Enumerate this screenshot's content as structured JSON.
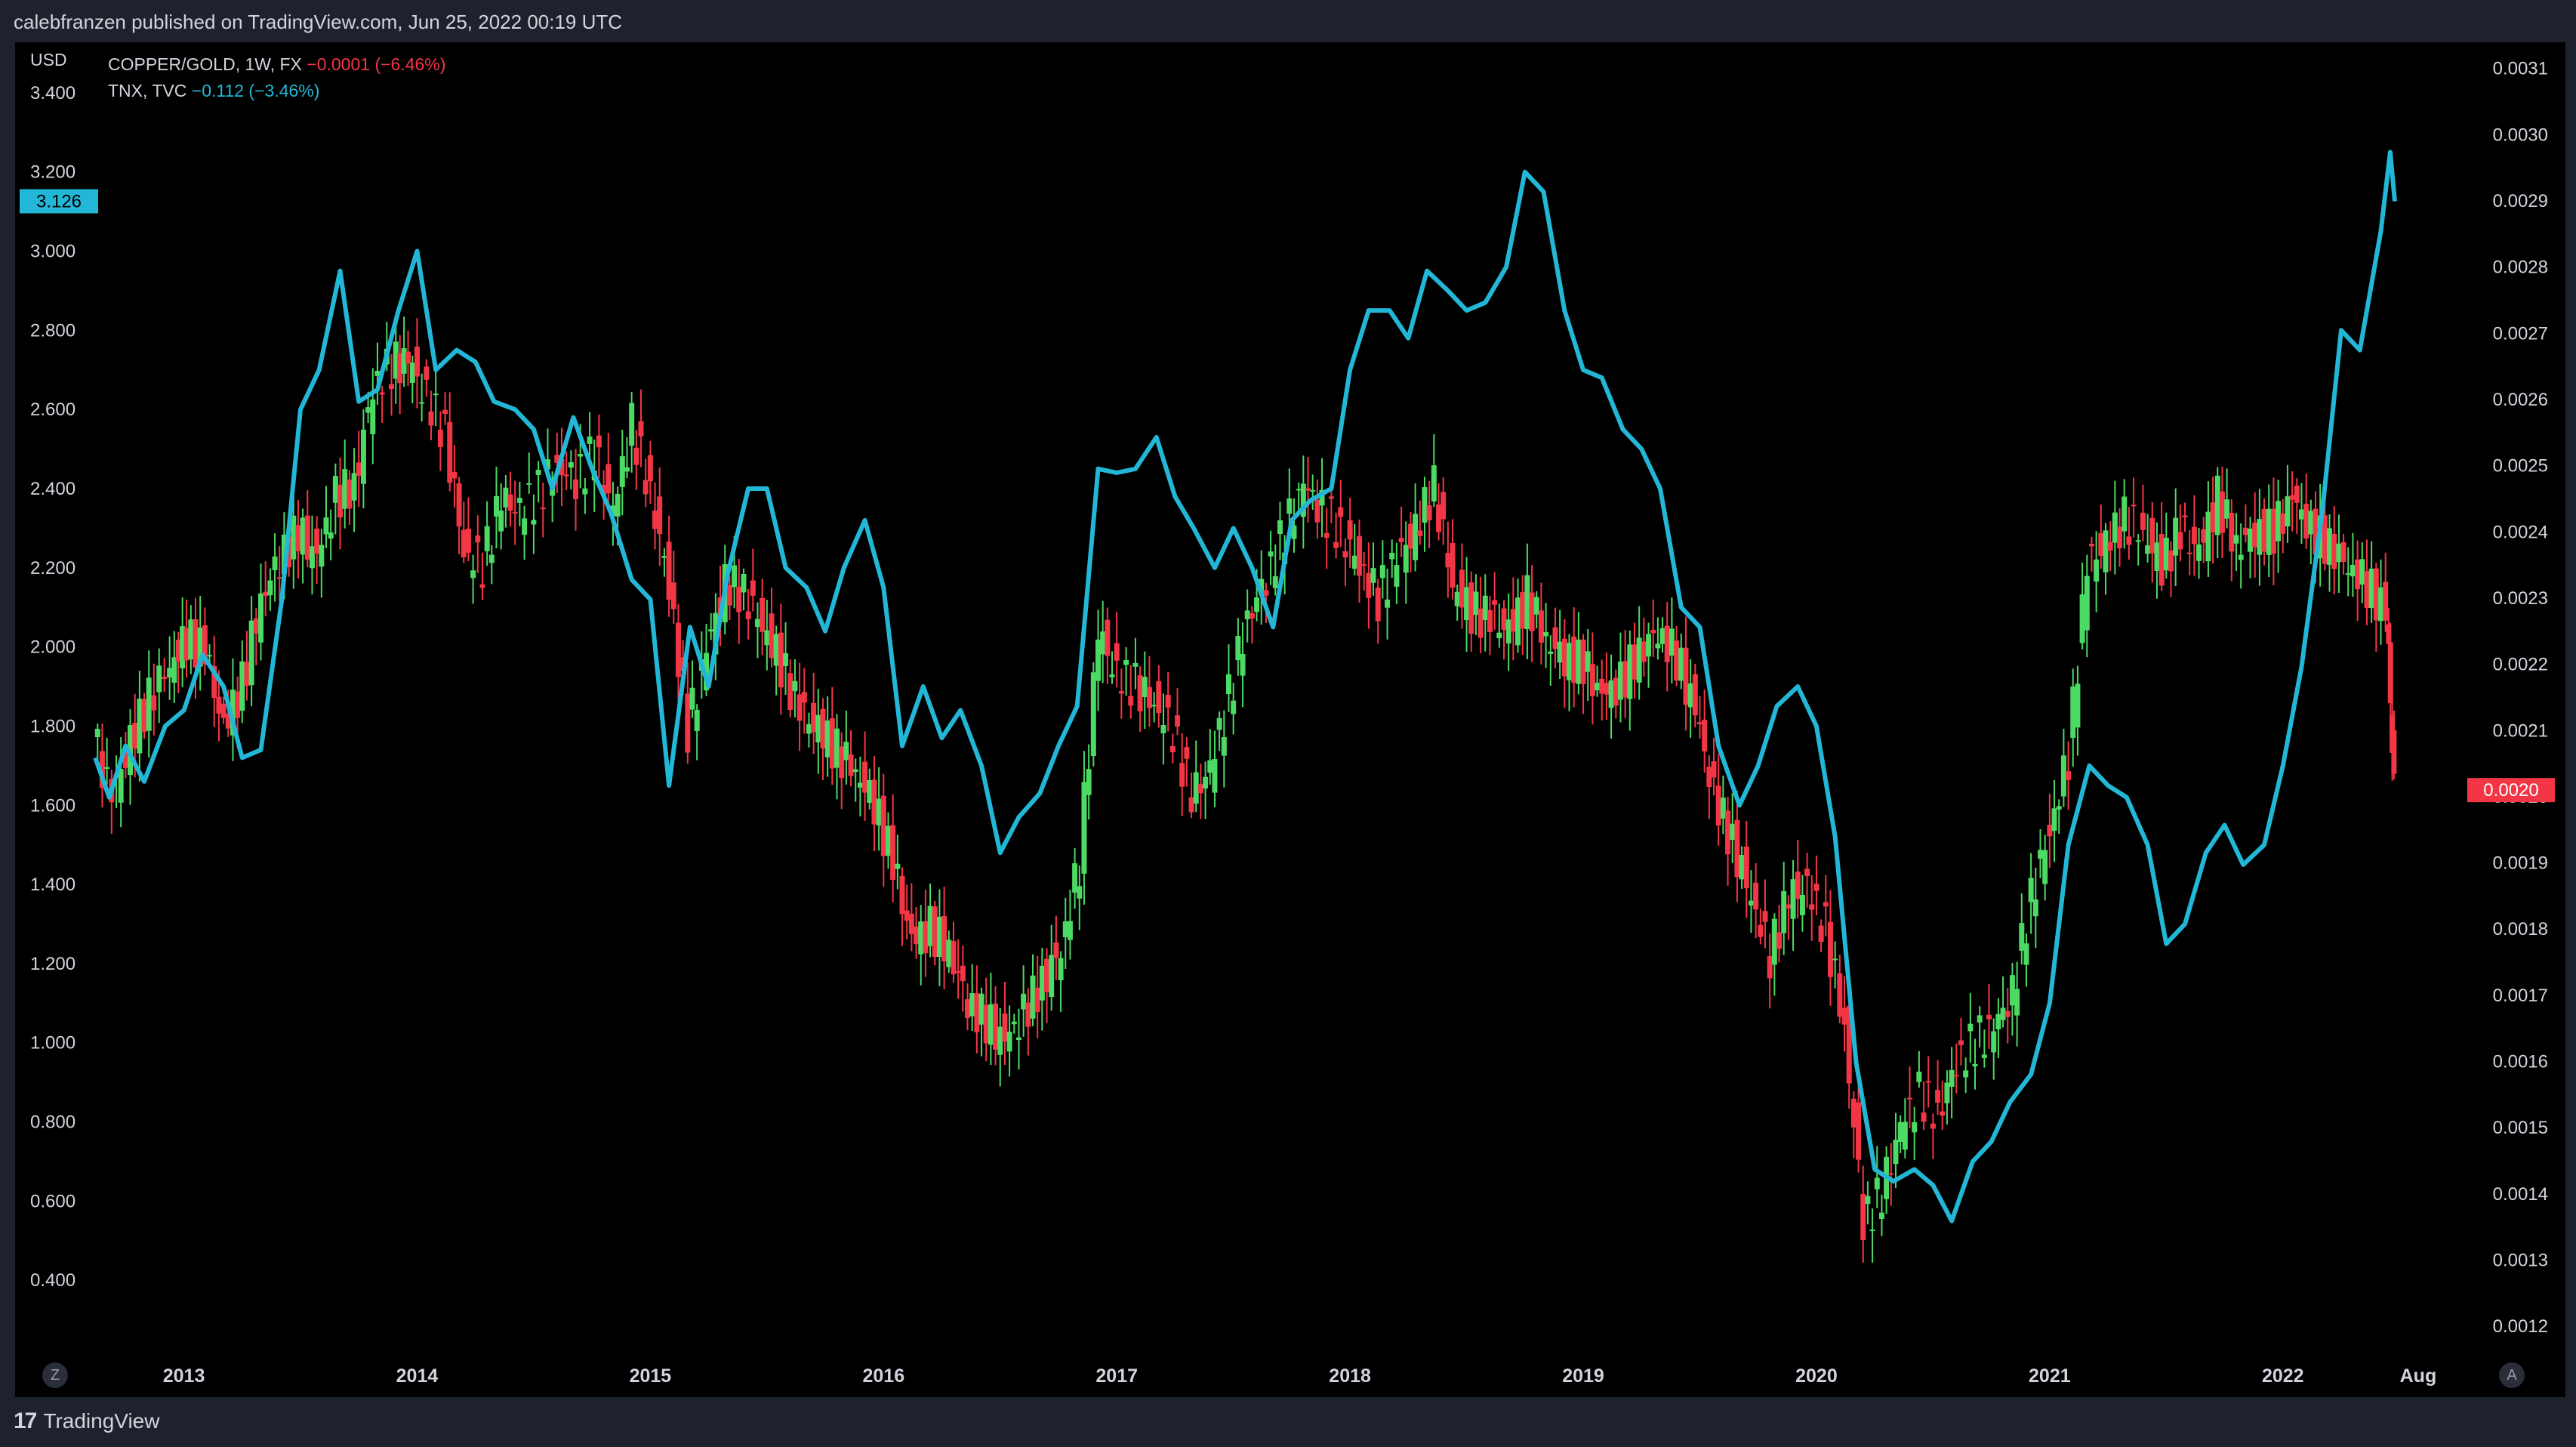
{
  "header": {
    "publish_text": "calebfranzen published on TradingView.com, Jun 25, 2022 00:19 UTC"
  },
  "footer": {
    "brand_mark": "17",
    "brand_text": "TradingView"
  },
  "controls": {
    "left_button": "Z",
    "right_button": "A"
  },
  "colors": {
    "background": "#000000",
    "frame": "#1e222d",
    "tnx_line": "#22b7d6",
    "candle_up": "#4cd964",
    "candle_down": "#f23645",
    "text": "#d1d4dc"
  },
  "legend": {
    "copper_gold": {
      "name": "COPPER/GOLD, 1W, FX",
      "change": "−0.0001 (−6.46%)"
    },
    "tnx": {
      "name": "TNX, TVC",
      "change": "−0.112 (−3.46%)"
    }
  },
  "chart_data": {
    "type": "line",
    "title": "",
    "left_axis": {
      "unit": "USD",
      "ticks": [
        "3.400",
        "3.200",
        "3.000",
        "2.800",
        "2.600",
        "2.400",
        "2.200",
        "2.000",
        "1.800",
        "1.600",
        "1.400",
        "1.200",
        "1.000",
        "0.800",
        "0.600",
        "0.400"
      ],
      "range": [
        0.2,
        3.52
      ],
      "last_value_label": "3.126",
      "last_value": 3.126
    },
    "right_axis": {
      "ticks": [
        "0.0031",
        "0.0030",
        "0.0029",
        "0.0028",
        "0.0027",
        "0.0026",
        "0.0025",
        "0.0024",
        "0.0023",
        "0.0022",
        "0.0021",
        "0.0020",
        "0.0019",
        "0.0018",
        "0.0017",
        "0.0016",
        "0.0015",
        "0.0014",
        "0.0013",
        "0.0012"
      ],
      "range": [
        0.00115,
        0.003135
      ],
      "last_value_label": "0.0020",
      "last_value": 0.00201
    },
    "x_axis": {
      "labels": [
        "2013",
        "2014",
        "2015",
        "2016",
        "2017",
        "2018",
        "2019",
        "2020",
        "2021",
        "2022",
        "Aug"
      ],
      "label_times": [
        2013.0,
        2014.0,
        2015.0,
        2016.0,
        2017.0,
        2018.0,
        2019.0,
        2020.0,
        2021.0,
        2022.0,
        2022.58
      ],
      "range": [
        2012.6,
        2022.7
      ]
    },
    "grid": false,
    "series": [
      {
        "name": "TNX, TVC",
        "style": "line",
        "axis": "left",
        "points": [
          [
            2012.62,
            1.72
          ],
          [
            2012.68,
            1.62
          ],
          [
            2012.75,
            1.75
          ],
          [
            2012.83,
            1.66
          ],
          [
            2012.92,
            1.8
          ],
          [
            2013.0,
            1.84
          ],
          [
            2013.08,
            1.98
          ],
          [
            2013.17,
            1.9
          ],
          [
            2013.25,
            1.72
          ],
          [
            2013.33,
            1.74
          ],
          [
            2013.42,
            2.12
          ],
          [
            2013.5,
            2.6
          ],
          [
            2013.58,
            2.7
          ],
          [
            2013.67,
            2.95
          ],
          [
            2013.75,
            2.62
          ],
          [
            2013.83,
            2.65
          ],
          [
            2013.92,
            2.85
          ],
          [
            2014.0,
            3.0
          ],
          [
            2014.08,
            2.7
          ],
          [
            2014.17,
            2.75
          ],
          [
            2014.25,
            2.72
          ],
          [
            2014.33,
            2.62
          ],
          [
            2014.42,
            2.6
          ],
          [
            2014.5,
            2.55
          ],
          [
            2014.58,
            2.4
          ],
          [
            2014.67,
            2.58
          ],
          [
            2014.75,
            2.45
          ],
          [
            2014.83,
            2.34
          ],
          [
            2014.92,
            2.17
          ],
          [
            2015.0,
            2.12
          ],
          [
            2015.08,
            1.65
          ],
          [
            2015.17,
            2.05
          ],
          [
            2015.25,
            1.9
          ],
          [
            2015.33,
            2.18
          ],
          [
            2015.42,
            2.4
          ],
          [
            2015.5,
            2.4
          ],
          [
            2015.58,
            2.2
          ],
          [
            2015.67,
            2.15
          ],
          [
            2015.75,
            2.04
          ],
          [
            2015.83,
            2.2
          ],
          [
            2015.92,
            2.32
          ],
          [
            2016.0,
            2.15
          ],
          [
            2016.08,
            1.75
          ],
          [
            2016.17,
            1.9
          ],
          [
            2016.25,
            1.77
          ],
          [
            2016.33,
            1.84
          ],
          [
            2016.42,
            1.7
          ],
          [
            2016.5,
            1.48
          ],
          [
            2016.58,
            1.57
          ],
          [
            2016.67,
            1.63
          ],
          [
            2016.75,
            1.75
          ],
          [
            2016.83,
            1.85
          ],
          [
            2016.92,
            2.45
          ],
          [
            2017.0,
            2.44
          ],
          [
            2017.08,
            2.45
          ],
          [
            2017.17,
            2.53
          ],
          [
            2017.25,
            2.38
          ],
          [
            2017.33,
            2.3
          ],
          [
            2017.42,
            2.2
          ],
          [
            2017.5,
            2.3
          ],
          [
            2017.58,
            2.2
          ],
          [
            2017.67,
            2.05
          ],
          [
            2017.75,
            2.32
          ],
          [
            2017.83,
            2.37
          ],
          [
            2017.92,
            2.4
          ],
          [
            2018.0,
            2.7
          ],
          [
            2018.08,
            2.85
          ],
          [
            2018.17,
            2.85
          ],
          [
            2018.25,
            2.78
          ],
          [
            2018.33,
            2.95
          ],
          [
            2018.42,
            2.9
          ],
          [
            2018.5,
            2.85
          ],
          [
            2018.58,
            2.87
          ],
          [
            2018.67,
            2.96
          ],
          [
            2018.75,
            3.2
          ],
          [
            2018.83,
            3.15
          ],
          [
            2018.92,
            2.85
          ],
          [
            2019.0,
            2.7
          ],
          [
            2019.08,
            2.68
          ],
          [
            2019.17,
            2.55
          ],
          [
            2019.25,
            2.5
          ],
          [
            2019.33,
            2.4
          ],
          [
            2019.42,
            2.1
          ],
          [
            2019.5,
            2.05
          ],
          [
            2019.58,
            1.75
          ],
          [
            2019.67,
            1.6
          ],
          [
            2019.75,
            1.7
          ],
          [
            2019.83,
            1.85
          ],
          [
            2019.92,
            1.9
          ],
          [
            2020.0,
            1.8
          ],
          [
            2020.08,
            1.52
          ],
          [
            2020.17,
            0.95
          ],
          [
            2020.25,
            0.68
          ],
          [
            2020.33,
            0.65
          ],
          [
            2020.42,
            0.68
          ],
          [
            2020.5,
            0.64
          ],
          [
            2020.58,
            0.55
          ],
          [
            2020.67,
            0.7
          ],
          [
            2020.75,
            0.75
          ],
          [
            2020.83,
            0.85
          ],
          [
            2020.92,
            0.92
          ],
          [
            2021.0,
            1.1
          ],
          [
            2021.08,
            1.5
          ],
          [
            2021.17,
            1.7
          ],
          [
            2021.25,
            1.65
          ],
          [
            2021.33,
            1.62
          ],
          [
            2021.42,
            1.5
          ],
          [
            2021.5,
            1.25
          ],
          [
            2021.58,
            1.3
          ],
          [
            2021.67,
            1.48
          ],
          [
            2021.75,
            1.55
          ],
          [
            2021.83,
            1.45
          ],
          [
            2021.92,
            1.5
          ],
          [
            2022.0,
            1.7
          ],
          [
            2022.08,
            1.95
          ],
          [
            2022.17,
            2.35
          ],
          [
            2022.25,
            2.8
          ],
          [
            2022.33,
            2.75
          ],
          [
            2022.42,
            3.05
          ],
          [
            2022.46,
            3.25
          ],
          [
            2022.48,
            3.126
          ]
        ]
      },
      {
        "name": "COPPER/GOLD, 1W, FX",
        "style": "candles",
        "axis": "right",
        "points": [
          [
            2012.62,
            0.00209
          ],
          [
            2012.7,
            0.002
          ],
          [
            2012.78,
            0.00208
          ],
          [
            2012.86,
            0.00215
          ],
          [
            2012.95,
            0.0022
          ],
          [
            2013.02,
            0.00224
          ],
          [
            2013.1,
            0.00222
          ],
          [
            2013.18,
            0.0021
          ],
          [
            2013.26,
            0.00217
          ],
          [
            2013.34,
            0.0023
          ],
          [
            2013.42,
            0.00236
          ],
          [
            2013.5,
            0.0024
          ],
          [
            2013.58,
            0.00236
          ],
          [
            2013.66,
            0.00245
          ],
          [
            2013.74,
            0.00247
          ],
          [
            2013.82,
            0.00262
          ],
          [
            2013.9,
            0.00265
          ],
          [
            2013.97,
            0.00266
          ],
          [
            2014.05,
            0.0026
          ],
          [
            2014.13,
            0.00255
          ],
          [
            2014.21,
            0.00237
          ],
          [
            2014.29,
            0.00235
          ],
          [
            2014.37,
            0.00245
          ],
          [
            2014.45,
            0.00243
          ],
          [
            2014.53,
            0.00246
          ],
          [
            2014.61,
            0.0025
          ],
          [
            2014.69,
            0.00248
          ],
          [
            2014.77,
            0.00252
          ],
          [
            2014.85,
            0.00243
          ],
          [
            2014.93,
            0.00256
          ],
          [
            2015.01,
            0.00246
          ],
          [
            2015.09,
            0.00232
          ],
          [
            2015.17,
            0.0021
          ],
          [
            2015.25,
            0.00222
          ],
          [
            2015.33,
            0.00232
          ],
          [
            2015.41,
            0.00231
          ],
          [
            2015.49,
            0.00226
          ],
          [
            2015.57,
            0.0022
          ],
          [
            2015.65,
            0.00213
          ],
          [
            2015.73,
            0.0021
          ],
          [
            2015.81,
            0.00207
          ],
          [
            2015.89,
            0.00204
          ],
          [
            2015.97,
            0.00199
          ],
          [
            2016.05,
            0.0019
          ],
          [
            2016.13,
            0.00178
          ],
          [
            2016.21,
            0.0018
          ],
          [
            2016.29,
            0.00177
          ],
          [
            2016.37,
            0.00169
          ],
          [
            2016.45,
            0.00166
          ],
          [
            2016.53,
            0.00163
          ],
          [
            2016.61,
            0.00167
          ],
          [
            2016.69,
            0.00172
          ],
          [
            2016.77,
            0.00177
          ],
          [
            2016.85,
            0.0019
          ],
          [
            2016.93,
            0.00225
          ],
          [
            2017.01,
            0.00218
          ],
          [
            2017.09,
            0.00217
          ],
          [
            2017.17,
            0.00214
          ],
          [
            2017.25,
            0.0021
          ],
          [
            2017.33,
            0.002
          ],
          [
            2017.41,
            0.00204
          ],
          [
            2017.49,
            0.00215
          ],
          [
            2017.57,
            0.00227
          ],
          [
            2017.65,
            0.00233
          ],
          [
            2017.73,
            0.0024
          ],
          [
            2017.81,
            0.00247
          ],
          [
            2017.89,
            0.00243
          ],
          [
            2017.97,
            0.0024
          ],
          [
            2018.05,
            0.00235
          ],
          [
            2018.13,
            0.0023
          ],
          [
            2018.21,
            0.00236
          ],
          [
            2018.29,
            0.0024
          ],
          [
            2018.37,
            0.00247
          ],
          [
            2018.45,
            0.00232
          ],
          [
            2018.53,
            0.00228
          ],
          [
            2018.61,
            0.00227
          ],
          [
            2018.69,
            0.00225
          ],
          [
            2018.77,
            0.0023
          ],
          [
            2018.85,
            0.00224
          ],
          [
            2018.93,
            0.00221
          ],
          [
            2019.01,
            0.0022
          ],
          [
            2019.09,
            0.00215
          ],
          [
            2019.17,
            0.00217
          ],
          [
            2019.25,
            0.00222
          ],
          [
            2019.33,
            0.00225
          ],
          [
            2019.41,
            0.00221
          ],
          [
            2019.49,
            0.00213
          ],
          [
            2019.57,
            0.002
          ],
          [
            2019.65,
            0.00193
          ],
          [
            2019.73,
            0.00185
          ],
          [
            2019.81,
            0.00176
          ],
          [
            2019.89,
            0.00185
          ],
          [
            2019.97,
            0.00186
          ],
          [
            2020.05,
            0.0018
          ],
          [
            2020.13,
            0.00165
          ],
          [
            2020.21,
            0.00136
          ],
          [
            2020.29,
            0.0014
          ],
          [
            2020.37,
            0.0015
          ],
          [
            2020.45,
            0.00155
          ],
          [
            2020.53,
            0.00152
          ],
          [
            2020.61,
            0.0016
          ],
          [
            2020.69,
            0.00163
          ],
          [
            2020.77,
            0.00165
          ],
          [
            2020.85,
            0.0017
          ],
          [
            2020.93,
            0.00185
          ],
          [
            2021.01,
            0.00195
          ],
          [
            2021.09,
            0.00206
          ],
          [
            2021.17,
            0.00235
          ],
          [
            2021.25,
            0.00238
          ],
          [
            2021.33,
            0.00242
          ],
          [
            2021.41,
            0.0024
          ],
          [
            2021.49,
            0.00235
          ],
          [
            2021.57,
            0.0024
          ],
          [
            2021.65,
            0.00237
          ],
          [
            2021.73,
            0.00245
          ],
          [
            2021.81,
            0.00238
          ],
          [
            2021.89,
            0.0024
          ],
          [
            2021.97,
            0.0024
          ],
          [
            2022.05,
            0.00245
          ],
          [
            2022.13,
            0.0024
          ],
          [
            2022.21,
            0.00238
          ],
          [
            2022.29,
            0.00235
          ],
          [
            2022.37,
            0.00232
          ],
          [
            2022.45,
            0.00228
          ],
          [
            2022.48,
            0.00201
          ]
        ]
      }
    ]
  }
}
